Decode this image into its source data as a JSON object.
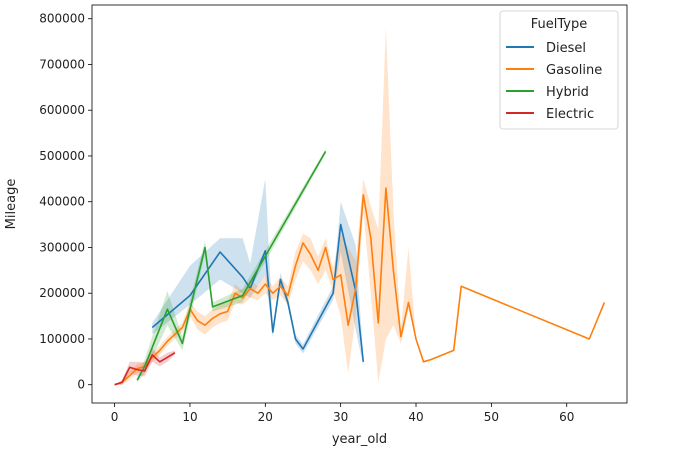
{
  "chart_data": {
    "type": "line",
    "title": "",
    "xlabel": "year_old",
    "ylabel": "Mileage",
    "xlim": [
      -3,
      68
    ],
    "ylim": [
      -40000,
      830000
    ],
    "xticks": [
      0,
      10,
      20,
      30,
      40,
      50,
      60
    ],
    "yticks": [
      0,
      100000,
      200000,
      300000,
      400000,
      500000,
      600000,
      700000,
      800000
    ],
    "grid": false,
    "legend": {
      "title": "FuelType",
      "placement": "top-right"
    },
    "series": [
      {
        "name": "Diesel",
        "color": "#1f77b4",
        "x": [
          5,
          10,
          14,
          17,
          18,
          20,
          21,
          22,
          23,
          24,
          25,
          29,
          30,
          32,
          33
        ],
        "y": [
          125000,
          195000,
          290000,
          235000,
          210000,
          293000,
          115000,
          230000,
          180000,
          100000,
          78000,
          200000,
          350000,
          205000,
          50000
        ],
        "ci_low": [
          110000,
          175000,
          230000,
          200000,
          190000,
          240000,
          105000,
          215000,
          170000,
          90000,
          68000,
          185000,
          290000,
          120000,
          40000
        ],
        "ci_high": [
          135000,
          260000,
          320000,
          320000,
          265000,
          450000,
          125000,
          245000,
          190000,
          110000,
          88000,
          215000,
          400000,
          305000,
          60000
        ]
      },
      {
        "name": "Gasoline",
        "color": "#ff7f0e",
        "x": [
          0,
          1,
          2,
          3,
          4,
          5,
          6,
          7,
          8,
          9,
          10,
          11,
          12,
          13,
          14,
          15,
          16,
          17,
          18,
          19,
          20,
          21,
          22,
          23,
          24,
          25,
          26,
          27,
          28,
          29,
          30,
          31,
          32,
          33,
          34,
          35,
          36,
          37,
          38,
          39,
          40,
          41,
          42,
          45,
          46,
          63,
          65
        ],
        "y": [
          0,
          5000,
          20000,
          35000,
          40000,
          60000,
          75000,
          95000,
          110000,
          125000,
          165000,
          140000,
          130000,
          145000,
          155000,
          160000,
          200000,
          190000,
          210000,
          200000,
          220000,
          200000,
          215000,
          195000,
          260000,
          310000,
          285000,
          250000,
          300000,
          230000,
          240000,
          130000,
          210000,
          415000,
          320000,
          135000,
          430000,
          250000,
          105000,
          180000,
          100000,
          50000,
          55000,
          75000,
          215000,
          100000,
          180000
        ],
        "ci_low": [
          0,
          0,
          10000,
          25000,
          30000,
          50000,
          65000,
          85000,
          100000,
          115000,
          150000,
          120000,
          110000,
          125000,
          135000,
          140000,
          180000,
          175000,
          190000,
          185000,
          200000,
          185000,
          195000,
          175000,
          230000,
          270000,
          250000,
          220000,
          250000,
          205000,
          150000,
          25000,
          150000,
          380000,
          200000,
          5000,
          100000,
          130000,
          90000,
          165000,
          100000,
          50000,
          55000,
          75000,
          215000,
          100000,
          180000
        ],
        "ci_high": [
          0,
          10000,
          30000,
          45000,
          50000,
          70000,
          85000,
          105000,
          120000,
          135000,
          180000,
          160000,
          150000,
          165000,
          175000,
          180000,
          220000,
          205000,
          230000,
          215000,
          240000,
          215000,
          235000,
          215000,
          290000,
          330000,
          320000,
          280000,
          320000,
          255000,
          330000,
          300000,
          270000,
          450000,
          390000,
          340000,
          780000,
          380000,
          120000,
          300000,
          100000,
          50000,
          55000,
          75000,
          215000,
          100000,
          180000
        ]
      },
      {
        "name": "Hybrid",
        "color": "#2ca02c",
        "x": [
          3,
          4,
          7,
          9,
          10,
          12,
          13,
          17,
          28
        ],
        "y": [
          10000,
          40000,
          165000,
          90000,
          165000,
          300000,
          170000,
          195000,
          510000
        ],
        "ci_low": [
          5000,
          25000,
          130000,
          75000,
          145000,
          285000,
          160000,
          180000,
          505000
        ],
        "ci_high": [
          15000,
          55000,
          205000,
          105000,
          185000,
          315000,
          180000,
          210000,
          515000
        ]
      },
      {
        "name": "Electric",
        "color": "#d62728",
        "x": [
          0,
          1,
          2,
          3,
          4,
          5,
          6,
          7,
          8
        ],
        "y": [
          0,
          5000,
          38000,
          33000,
          30000,
          65000,
          50000,
          60000,
          70000
        ],
        "ci_low": [
          0,
          0,
          25000,
          20000,
          18000,
          50000,
          40000,
          50000,
          65000
        ],
        "ci_high": [
          0,
          10000,
          50000,
          50000,
          48000,
          80000,
          60000,
          70000,
          75000
        ]
      }
    ]
  }
}
